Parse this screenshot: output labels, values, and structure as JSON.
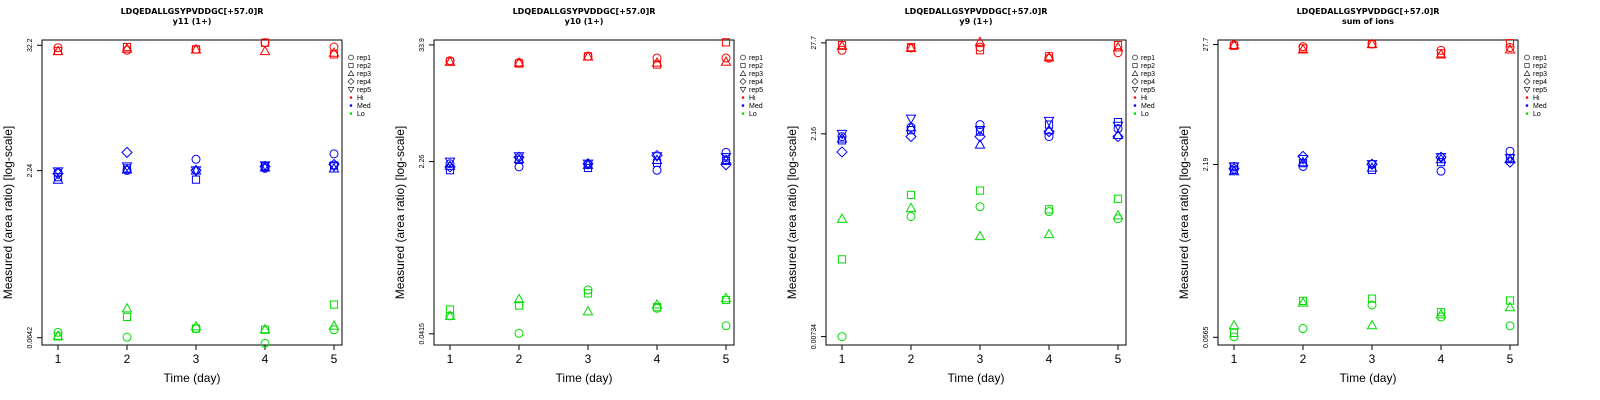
{
  "colors": {
    "Hi": "#ff0000",
    "Med": "#0000ff",
    "Lo": "#00dd00"
  },
  "chart_data": [
    {
      "type": "scatter",
      "title": "LDQEDALLGSYPVDDGC[+57.0]R",
      "subtitle": "y11 (1+)",
      "xlabel": "Time (day)",
      "ylabel": "Measured (area ratio) [log-scale]",
      "x_ticks": [
        "1",
        "2",
        "3",
        "4",
        "5"
      ],
      "y_tick_labels": [
        "0.0642",
        "2.24",
        "32.2"
      ],
      "y_tick_values": [
        0.0642,
        2.24,
        32.2
      ],
      "ylim": [
        0.055,
        36
      ],
      "legend": [
        "rep1",
        "rep2",
        "rep3",
        "rep4",
        "rep5",
        "Hi",
        "Med",
        "Lo"
      ],
      "series": [
        {
          "group": "Hi",
          "rep": "rep1",
          "values": [
            30.5,
            29.0,
            29.5,
            34.0,
            31.0
          ]
        },
        {
          "group": "Hi",
          "rep": "rep2",
          "values": [
            28.5,
            31.0,
            29.5,
            34.0,
            26.5
          ]
        },
        {
          "group": "Hi",
          "rep": "rep3",
          "values": [
            28.5,
            30.0,
            29.5,
            28.5,
            27.5
          ]
        },
        {
          "group": "Med",
          "rep": "rep1",
          "values": [
            2.15,
            2.25,
            2.85,
            2.35,
            3.2
          ]
        },
        {
          "group": "Med",
          "rep": "rep2",
          "values": [
            1.95,
            2.35,
            1.85,
            2.45,
            2.5
          ]
        },
        {
          "group": "Med",
          "rep": "rep3",
          "values": [
            1.85,
            2.3,
            2.25,
            2.4,
            2.35
          ]
        },
        {
          "group": "Med",
          "rep": "rep4",
          "values": [
            2.1,
            3.3,
            2.25,
            2.45,
            2.55
          ]
        },
        {
          "group": "Med",
          "rep": "rep5",
          "values": [
            2.2,
            2.45,
            2.25,
            2.5,
            2.45
          ]
        },
        {
          "group": "Lo",
          "rep": "rep1",
          "values": [
            0.072,
            0.065,
            0.078,
            0.057,
            0.076
          ]
        },
        {
          "group": "Lo",
          "rep": "rep2",
          "values": [
            0.066,
            0.1,
            0.078,
            0.076,
            0.13
          ]
        },
        {
          "group": "Lo",
          "rep": "rep3",
          "values": [
            0.067,
            0.12,
            0.082,
            0.077,
            0.083
          ]
        }
      ]
    },
    {
      "type": "scatter",
      "title": "LDQEDALLGSYPVDDGC[+57.0]R",
      "subtitle": "y10 (1+)",
      "xlabel": "Time (day)",
      "ylabel": "Measured (area ratio) [log-scale]",
      "x_ticks": [
        "1",
        "2",
        "3",
        "4",
        "5"
      ],
      "y_tick_labels": [
        "0.0415",
        "2.26",
        "33.9"
      ],
      "y_tick_values": [
        0.0415,
        2.26,
        33.9
      ],
      "ylim": [
        0.032,
        38
      ],
      "legend": [
        "rep1",
        "rep2",
        "rep3",
        "rep4",
        "rep5",
        "Hi",
        "Med",
        "Lo"
      ],
      "series": [
        {
          "group": "Hi",
          "rep": "rep1",
          "values": [
            23.5,
            22.5,
            26.0,
            25.0,
            25.0
          ]
        },
        {
          "group": "Hi",
          "rep": "rep2",
          "values": [
            23.0,
            22.0,
            26.0,
            21.5,
            36.0
          ]
        },
        {
          "group": "Hi",
          "rep": "rep3",
          "values": [
            23.0,
            22.5,
            26.0,
            22.5,
            23.0
          ]
        },
        {
          "group": "Med",
          "rep": "rep1",
          "values": [
            2.15,
            2.0,
            2.1,
            1.85,
            2.8
          ]
        },
        {
          "group": "Med",
          "rep": "rep2",
          "values": [
            1.85,
            2.35,
            1.95,
            2.2,
            2.3
          ]
        },
        {
          "group": "Med",
          "rep": "rep3",
          "values": [
            2.05,
            2.4,
            2.1,
            2.35,
            2.35
          ]
        },
        {
          "group": "Med",
          "rep": "rep4",
          "values": [
            2.0,
            2.5,
            2.15,
            2.6,
            2.1
          ]
        },
        {
          "group": "Med",
          "rep": "rep5",
          "values": [
            2.25,
            2.55,
            2.15,
            2.55,
            2.5
          ]
        },
        {
          "group": "Lo",
          "rep": "rep1",
          "values": [
            0.063,
            0.042,
            0.115,
            0.075,
            0.05
          ]
        },
        {
          "group": "Lo",
          "rep": "rep2",
          "values": [
            0.073,
            0.08,
            0.106,
            0.077,
            0.091
          ]
        },
        {
          "group": "Lo",
          "rep": "rep3",
          "values": [
            0.063,
            0.093,
            0.07,
            0.082,
            0.095
          ]
        }
      ]
    },
    {
      "type": "scatter",
      "title": "LDQEDALLGSYPVDDGC[+57.0]R",
      "subtitle": "y9 (1+)",
      "xlabel": "Time (day)",
      "ylabel": "Measured (area ratio) [log-scale]",
      "x_ticks": [
        "1",
        "2",
        "3",
        "4",
        "5"
      ],
      "y_tick_labels": [
        "0.00734",
        "2.16",
        "27.7"
      ],
      "y_tick_values": [
        0.00734,
        2.16,
        27.7
      ],
      "ylim": [
        0.0058,
        30
      ],
      "legend": [
        "rep1",
        "rep2",
        "rep3",
        "rep4",
        "rep5",
        "Hi",
        "Med",
        "Lo"
      ],
      "series": [
        {
          "group": "Hi",
          "rep": "rep1",
          "values": [
            22.5,
            24.0,
            24.5,
            18.0,
            21.0
          ]
        },
        {
          "group": "Hi",
          "rep": "rep2",
          "values": [
            26.0,
            24.5,
            22.5,
            19.0,
            26.0
          ]
        },
        {
          "group": "Hi",
          "rep": "rep3",
          "values": [
            25.5,
            24.0,
            28.5,
            18.5,
            24.5
          ]
        },
        {
          "group": "Med",
          "rep": "rep1",
          "values": [
            2.0,
            2.6,
            2.8,
            2.0,
            2.5
          ]
        },
        {
          "group": "Med",
          "rep": "rep2",
          "values": [
            1.8,
            2.4,
            2.3,
            2.8,
            3.0
          ]
        },
        {
          "group": "Med",
          "rep": "rep3",
          "values": [
            1.9,
            2.6,
            1.6,
            2.4,
            2.1
          ]
        },
        {
          "group": "Med",
          "rep": "rep4",
          "values": [
            1.3,
            2.0,
            2.0,
            2.3,
            2.0
          ]
        },
        {
          "group": "Med",
          "rep": "rep5",
          "values": [
            2.15,
            3.3,
            2.4,
            3.1,
            2.7
          ]
        },
        {
          "group": "Lo",
          "rep": "rep1",
          "values": [
            0.00734,
            0.213,
            0.28,
            0.244,
            0.2
          ]
        },
        {
          "group": "Lo",
          "rep": "rep2",
          "values": [
            0.064,
            0.39,
            0.44,
            0.26,
            0.35
          ]
        },
        {
          "group": "Lo",
          "rep": "rep3",
          "values": [
            0.2,
            0.27,
            0.123,
            0.13,
            0.22
          ]
        }
      ]
    },
    {
      "type": "scatter",
      "title": "LDQEDALLGSYPVDDGC[+57.0]R",
      "subtitle": "sum of ions",
      "xlabel": "Time (day)",
      "ylabel": "Measured (area ratio) [log-scale]",
      "x_ticks": [
        "1",
        "2",
        "3",
        "4",
        "5"
      ],
      "y_tick_labels": [
        "0.0565",
        "2.19",
        "27.7"
      ],
      "y_tick_values": [
        0.0565,
        2.19,
        27.7
      ],
      "ylim": [
        0.048,
        30.5
      ],
      "legend": [
        "rep1",
        "rep2",
        "rep3",
        "rep4",
        "rep5",
        "Hi",
        "Med",
        "Lo"
      ],
      "series": [
        {
          "group": "Hi",
          "rep": "rep1",
          "values": [
            27.5,
            26.5,
            28.0,
            24.5,
            26.0
          ]
        },
        {
          "group": "Hi",
          "rep": "rep2",
          "values": [
            27.0,
            25.5,
            28.0,
            23.0,
            28.5
          ]
        },
        {
          "group": "Hi",
          "rep": "rep3",
          "values": [
            27.5,
            25.0,
            28.0,
            22.5,
            25.0
          ]
        },
        {
          "group": "Med",
          "rep": "rep1",
          "values": [
            2.1,
            2.1,
            2.2,
            1.9,
            2.9
          ]
        },
        {
          "group": "Med",
          "rep": "rep2",
          "values": [
            1.95,
            2.25,
            1.95,
            2.3,
            2.5
          ]
        },
        {
          "group": "Med",
          "rep": "rep3",
          "values": [
            1.9,
            2.3,
            2.05,
            2.45,
            2.45
          ]
        },
        {
          "group": "Med",
          "rep": "rep4",
          "values": [
            2.0,
            2.6,
            2.2,
            2.55,
            2.3
          ]
        },
        {
          "group": "Med",
          "rep": "rep5",
          "values": [
            2.1,
            2.45,
            2.2,
            2.55,
            2.5
          ]
        },
        {
          "group": "Lo",
          "rep": "rep1",
          "values": [
            0.057,
            0.068,
            0.112,
            0.087,
            0.072
          ]
        },
        {
          "group": "Lo",
          "rep": "rep2",
          "values": [
            0.062,
            0.122,
            0.128,
            0.096,
            0.123
          ]
        },
        {
          "group": "Lo",
          "rep": "rep3",
          "values": [
            0.073,
            0.118,
            0.073,
            0.092,
            0.107
          ]
        }
      ]
    }
  ]
}
